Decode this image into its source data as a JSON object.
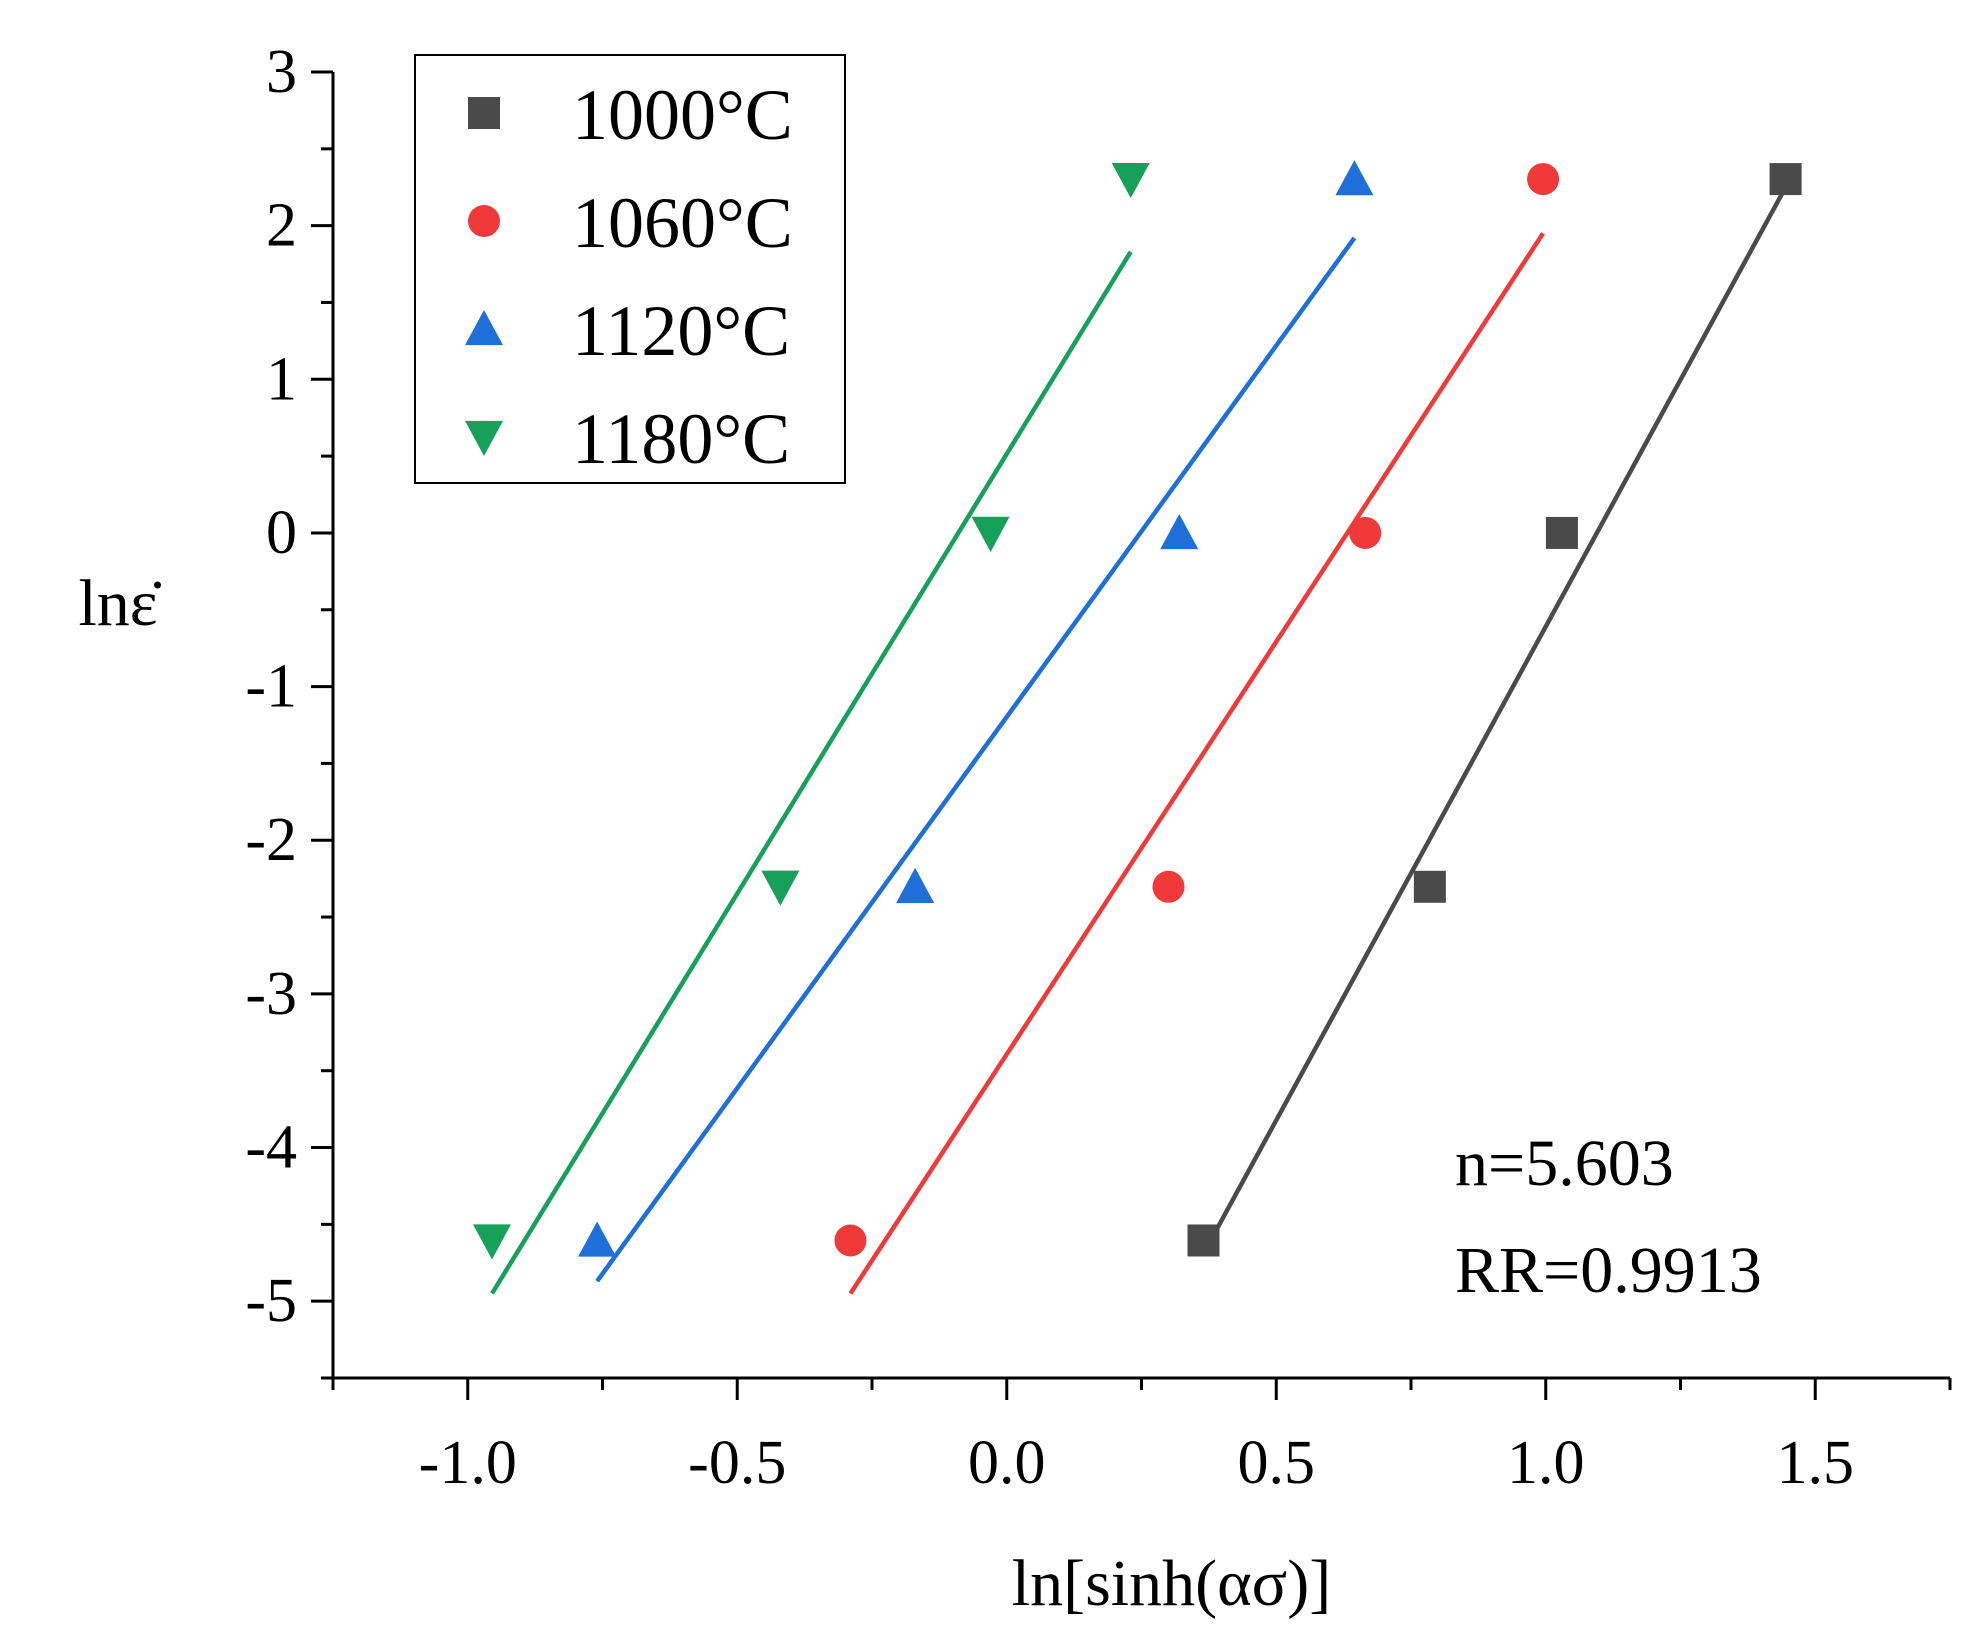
{
  "chart_data": {
    "type": "scatter",
    "xlabel": "ln[sinh(ασ)]",
    "ylabel": "lnε̇",
    "xlim": [
      -1.25,
      1.75
    ],
    "ylim": [
      -5.5,
      3
    ],
    "xticks": [
      -1.0,
      -0.5,
      0.0,
      0.5,
      1.0,
      1.5
    ],
    "xtick_labels": [
      "-1.0",
      "-0.5",
      "0.0",
      "0.5",
      "1.0",
      "1.5"
    ],
    "yticks": [
      3,
      2,
      1,
      0,
      -1,
      -2,
      -3,
      -4,
      -5
    ],
    "ytick_labels": [
      "3",
      "2",
      "1",
      "0",
      "-1",
      "-2",
      "-3",
      "-4",
      "-5"
    ],
    "grid": false,
    "legend_position": "top-left",
    "series": [
      {
        "name": "1000°C",
        "marker": "square",
        "color": "#4a4a4a",
        "x": [
          0.365,
          0.785,
          1.03,
          1.445
        ],
        "y": [
          -4.605,
          -2.303,
          0,
          2.303
        ],
        "fit": {
          "x": [
            0.365,
            1.445
          ],
          "y": [
            -4.69,
            2.25
          ]
        }
      },
      {
        "name": "1060°C",
        "marker": "circle",
        "color": "#f03a3a",
        "x": [
          -0.29,
          0.3,
          0.665,
          0.995
        ],
        "y": [
          -4.605,
          -2.303,
          0,
          2.303
        ],
        "fit": {
          "x": [
            -0.29,
            0.995
          ],
          "y": [
            -4.95,
            1.95
          ]
        }
      },
      {
        "name": "1120°C",
        "marker": "triangle-up",
        "color": "#1f6fd8",
        "x": [
          -0.76,
          -0.17,
          0.32,
          0.645
        ],
        "y": [
          -4.605,
          -2.303,
          0,
          2.303
        ],
        "fit": {
          "x": [
            -0.76,
            0.645
          ],
          "y": [
            -4.87,
            1.92
          ]
        }
      },
      {
        "name": "1180°C",
        "marker": "triangle-down",
        "color": "#16a05a",
        "x": [
          -0.955,
          -0.42,
          -0.03,
          0.23
        ],
        "y": [
          -4.605,
          -2.303,
          0,
          2.303
        ],
        "fit": {
          "x": [
            -0.955,
            0.23
          ],
          "y": [
            -4.95,
            1.83
          ]
        }
      }
    ],
    "annotations": [
      "n=5.603",
      "RR=0.9913"
    ]
  }
}
